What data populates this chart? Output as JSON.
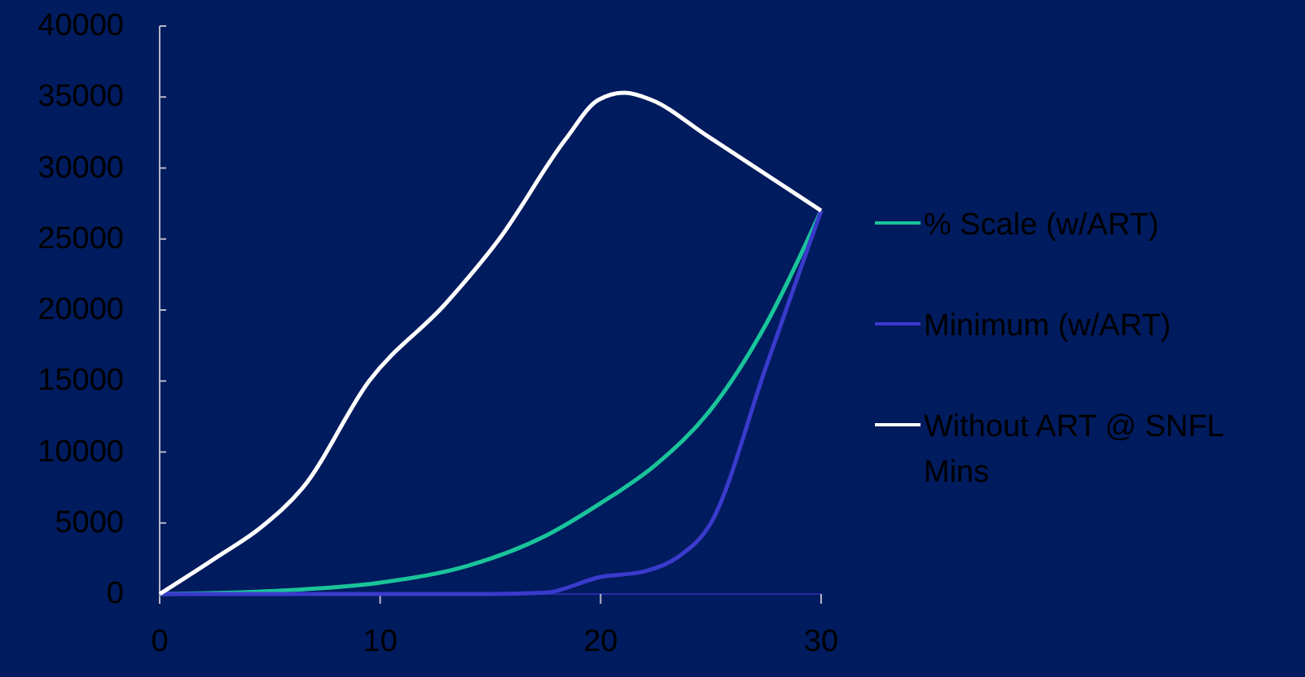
{
  "chart_data": {
    "type": "line",
    "xlim": [
      0,
      30
    ],
    "xticks": [
      0,
      10,
      20,
      30
    ],
    "ylim": [
      0,
      40000
    ],
    "yticks": [
      0,
      5000,
      10000,
      15000,
      20000,
      25000,
      30000,
      35000,
      40000
    ],
    "grid": false,
    "legend": "right",
    "marker": "none",
    "line_style": "solid",
    "series": [
      {
        "name": "% Scale (w/ART)",
        "color": "#19c49a",
        "x": [
          0,
          5,
          10,
          14,
          17.5,
          20,
          22.5,
          25,
          27.5,
          30
        ],
        "values": [
          0,
          200,
          800,
          2000,
          4100,
          6400,
          9100,
          13000,
          19000,
          27000
        ]
      },
      {
        "name": "Minimum (w/ART)",
        "color": "#3a3acc",
        "x": [
          0,
          10,
          15,
          17.5,
          20,
          22,
          23.5,
          25,
          27.5,
          30
        ],
        "values": [
          0,
          0,
          0,
          100,
          1200,
          1600,
          2600,
          5000,
          16000,
          27000
        ]
      },
      {
        "name": "Without ART @ SNFL Mins",
        "color": "#ffffff",
        "x": [
          0,
          2.6,
          4.6,
          6.5,
          9.5,
          13,
          15.4,
          18.4,
          19.9,
          21.1,
          22.3,
          24.8,
          30
        ],
        "values": [
          0,
          2600,
          4700,
          7500,
          15000,
          20500,
          25000,
          32000,
          34800,
          35300,
          34800,
          32300,
          27000
        ]
      }
    ]
  }
}
